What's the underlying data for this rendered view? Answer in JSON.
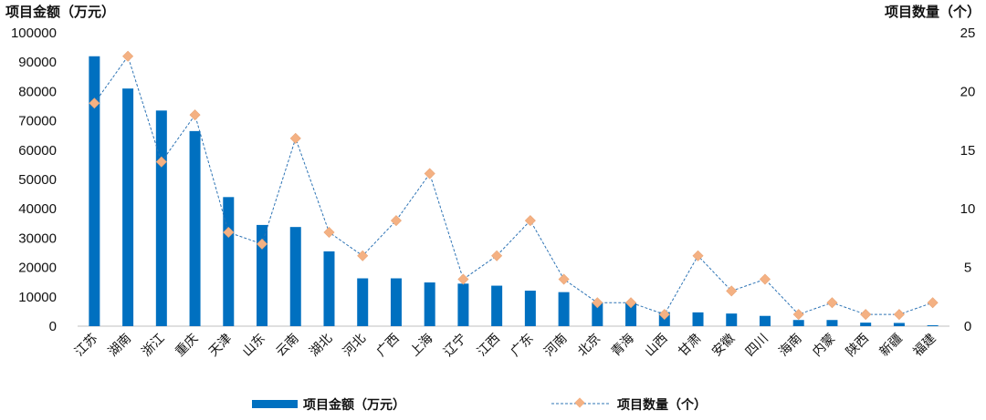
{
  "chart_data": {
    "type": "bar",
    "categories": [
      "江苏",
      "湖南",
      "浙江",
      "重庆",
      "天津",
      "山东",
      "云南",
      "湖北",
      "河北",
      "广西",
      "上海",
      "辽宁",
      "江西",
      "广东",
      "河南",
      "北京",
      "青海",
      "山西",
      "甘肃",
      "安徽",
      "四川",
      "海南",
      "内蒙",
      "陕西",
      "新疆",
      "福建"
    ],
    "series": [
      {
        "name": "项目金额（万元）",
        "type": "bar",
        "axis": "left",
        "color": "#0070C0",
        "values": [
          92000,
          81000,
          73500,
          66500,
          44000,
          34500,
          33800,
          25500,
          16300,
          16300,
          14900,
          14500,
          13800,
          12100,
          11600,
          8100,
          7900,
          4800,
          4700,
          4300,
          3500,
          2100,
          2100,
          1200,
          1100,
          300
        ]
      },
      {
        "name": "项目数量（个）",
        "type": "line",
        "axis": "right",
        "color": "#2E74B5",
        "marker_color": "#F4B183",
        "values": [
          19,
          23,
          14,
          18,
          8,
          7,
          16,
          8,
          6,
          9,
          13,
          4,
          6,
          9,
          4,
          2,
          2,
          1,
          6,
          3,
          4,
          1,
          2,
          1,
          1,
          2
        ]
      }
    ],
    "y_left": {
      "label": "项目金额（万元）",
      "range": [
        0,
        100000
      ],
      "ticks": [
        "0",
        "10000",
        "20000",
        "30000",
        "40000",
        "50000",
        "60000",
        "70000",
        "80000",
        "90000",
        "100000"
      ]
    },
    "y_right": {
      "label": "项目数量（个）",
      "range": [
        0,
        25
      ],
      "ticks": [
        "0",
        "5",
        "10",
        "15",
        "20",
        "25"
      ]
    },
    "grid": false,
    "legend_position": "bottom"
  }
}
